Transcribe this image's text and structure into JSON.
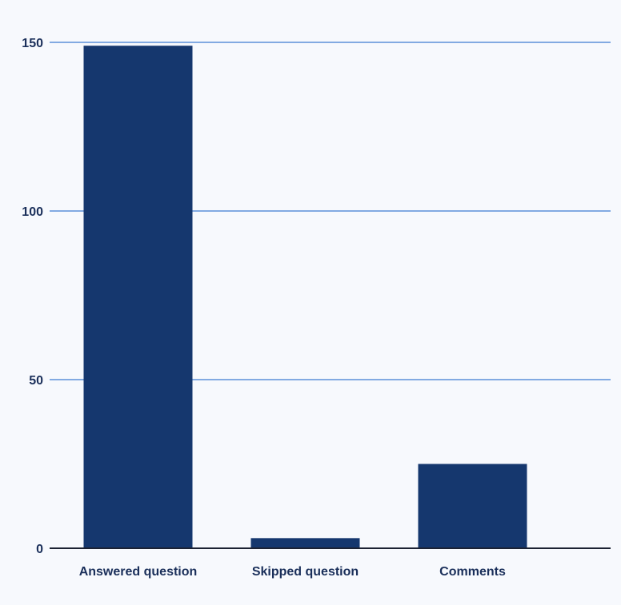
{
  "chart_data": {
    "type": "bar",
    "categories": [
      "Answered question",
      "Skipped question",
      "Comments"
    ],
    "values": [
      149,
      3,
      25
    ],
    "title": "",
    "xlabel": "",
    "ylabel": "",
    "ylim": [
      0,
      150
    ],
    "yticks": [
      0,
      50,
      100,
      150
    ],
    "grid": true,
    "legend": "none",
    "colors": {
      "bar": "#15376e",
      "grid": "#5b8fd9",
      "axis": "#1c2233",
      "text": "#1a2f5a",
      "background": "#f7f9fd"
    }
  }
}
